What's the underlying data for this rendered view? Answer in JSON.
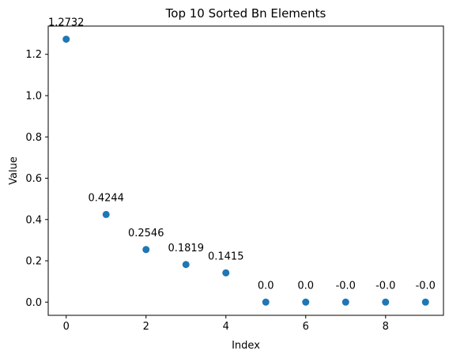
{
  "chart_data": {
    "type": "scatter",
    "title": "Top 10 Sorted Bn Elements",
    "xlabel": "Index",
    "ylabel": "Value",
    "x": [
      0,
      1,
      2,
      3,
      4,
      5,
      6,
      7,
      8,
      9
    ],
    "y": [
      1.2732,
      0.4244,
      0.2546,
      0.1819,
      0.1415,
      0.0,
      0.0,
      0.0,
      0.0,
      0.0
    ],
    "point_labels": [
      "1.2732",
      "0.4244",
      "0.2546",
      "0.1819",
      "0.1415",
      "0.0",
      "0.0",
      "-0.0",
      "-0.0",
      "-0.0"
    ],
    "xlim": [
      -0.45,
      9.45
    ],
    "ylim": [
      -0.064,
      1.3368
    ],
    "xticks": [
      0,
      2,
      4,
      6,
      8
    ],
    "xtick_labels": [
      "0",
      "2",
      "4",
      "6",
      "8"
    ],
    "yticks": [
      0.0,
      0.2,
      0.4,
      0.6,
      0.8,
      1.0,
      1.2
    ],
    "ytick_labels": [
      "0.0",
      "0.2",
      "0.4",
      "0.6",
      "0.8",
      "1.0",
      "1.2"
    ],
    "grid": false,
    "legend": "none",
    "marker_color": "#1f77b4"
  }
}
